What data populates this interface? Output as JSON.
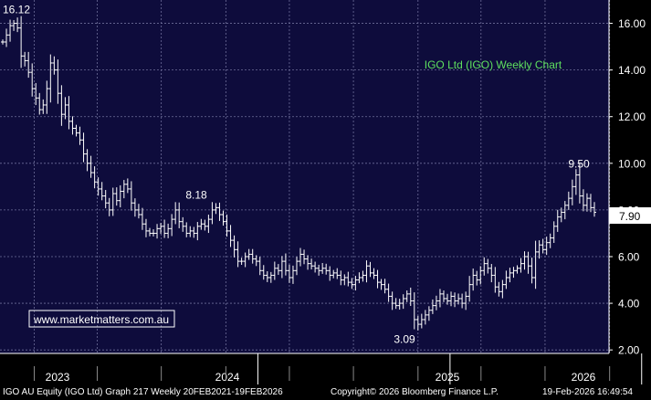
{
  "chart_data": {
    "type": "ohlc",
    "title": "IGO Ltd (IGO) Weekly Chart",
    "website": "www.marketmatters.com.au",
    "last_price": "7.90",
    "y_ticks": [
      "16.00",
      "14.00",
      "12.00",
      "10.00",
      "8.00",
      "6.00",
      "4.00",
      "2.00"
    ],
    "y_tick_values": [
      16,
      14,
      12,
      10,
      8,
      6,
      4,
      2
    ],
    "ylim": [
      1.85,
      17.0
    ],
    "x_labels": [
      "2023",
      "2024",
      "2025",
      "2026"
    ],
    "annotations": [
      {
        "text": "16.12",
        "date": "2022-09-16",
        "value": 16.12,
        "pos": "above"
      },
      {
        "text": "8.18",
        "date": "2023-12-22",
        "value": 8.18,
        "pos": "above"
      },
      {
        "text": "3.09",
        "date": "2025-03-07",
        "value": 3.09,
        "pos": "below"
      },
      {
        "text": "9.50",
        "date": "2025-12-19",
        "value": 9.5,
        "pos": "above"
      }
    ],
    "weekly_close": [
      15.2,
      15.5,
      15.9,
      16.0,
      15.8,
      14.6,
      14.4,
      13.9,
      13.2,
      12.8,
      12.3,
      12.5,
      13.2,
      14.3,
      14.0,
      13.0,
      12.1,
      12.5,
      11.8,
      11.5,
      11.3,
      11.0,
      10.4,
      10.0,
      9.6,
      9.2,
      8.9,
      8.6,
      8.3,
      8.0,
      8.7,
      8.4,
      8.8,
      9.1,
      8.9,
      8.3,
      8.0,
      7.8,
      7.4,
      7.1,
      7.0,
      7.0,
      7.2,
      7.3,
      7.0,
      7.2,
      7.6,
      8.0,
      7.5,
      7.3,
      7.0,
      7.1,
      7.0,
      7.3,
      7.4,
      7.3,
      7.6,
      8.0,
      8.1,
      7.8,
      7.5,
      7.1,
      6.7,
      6.3,
      5.8,
      5.8,
      6.0,
      6.1,
      5.9,
      5.8,
      5.4,
      5.2,
      5.1,
      5.2,
      5.5,
      5.4,
      5.8,
      5.4,
      5.1,
      5.4,
      5.8,
      6.1,
      5.9,
      5.7,
      5.6,
      5.5,
      5.4,
      5.5,
      5.4,
      5.2,
      5.3,
      5.2,
      5.0,
      5.1,
      4.9,
      4.8,
      5.0,
      5.1,
      5.2,
      5.6,
      5.3,
      5.2,
      4.9,
      4.8,
      4.6,
      4.3,
      4.0,
      3.9,
      4.0,
      4.2,
      4.4,
      4.1,
      3.3,
      3.1,
      3.3,
      3.5,
      3.7,
      3.9,
      4.1,
      4.4,
      4.2,
      4.1,
      4.3,
      4.1,
      4.2,
      4.0,
      4.3,
      4.8,
      5.2,
      5.0,
      5.4,
      5.7,
      5.5,
      5.2,
      4.7,
      4.5,
      4.8,
      5.1,
      5.3,
      5.4,
      5.5,
      5.7,
      6.0,
      5.6,
      5.1,
      6.2,
      6.5,
      6.3,
      6.6,
      6.8,
      7.3,
      7.7,
      7.9,
      8.2,
      8.5,
      9.0,
      9.5,
      8.6,
      8.2,
      8.5,
      8.1,
      7.9
    ]
  }
}
